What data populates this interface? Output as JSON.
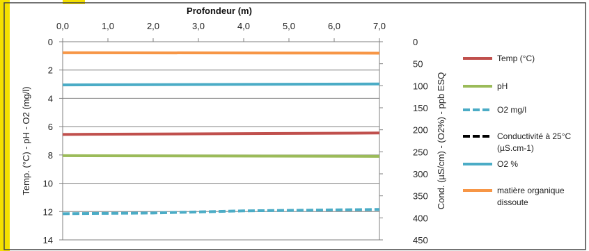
{
  "chart_data": {
    "type": "line",
    "title": "Profondeur (m)",
    "xlabel": "Profondeur (m)",
    "ylabel": "Temp. (°C) - pH - O2 (mg/l)",
    "y2label": "Cond. (µS/cm) - (O2%) - ppb ESQ",
    "x_ticks": [
      "0,0",
      "1,0",
      "2,0",
      "3,0",
      "4,0",
      "5,0",
      "6,0",
      "7,0"
    ],
    "y_ticks": [
      "0",
      "2",
      "4",
      "6",
      "8",
      "10",
      "12",
      "14"
    ],
    "y2_ticks": [
      "0",
      "50",
      "100",
      "150",
      "200",
      "250",
      "300",
      "350",
      "400",
      "450"
    ],
    "xlim": [
      0,
      7
    ],
    "ylim": [
      0,
      14
    ],
    "y2lim": [
      0,
      450
    ],
    "y_inverted": true,
    "x_axis_position": "top",
    "grid": "horizontal",
    "legend_position": "right",
    "series": [
      {
        "name": "Temp (°C)",
        "axis": "left",
        "color": "#c0504d",
        "dash": "solid",
        "x": [
          0,
          7
        ],
        "y": [
          6.55,
          6.45
        ]
      },
      {
        "name": "pH",
        "axis": "left",
        "color": "#9bbb59",
        "dash": "solid",
        "x": [
          0,
          7
        ],
        "y": [
          8.05,
          8.1
        ]
      },
      {
        "name": "O2  mg/l",
        "axis": "left",
        "color": "#4bacc6",
        "dash": "dashed",
        "x": [
          0,
          2,
          4,
          7
        ],
        "y": [
          12.15,
          12.1,
          11.95,
          11.85
        ]
      },
      {
        "name": "Conductivité à 25°C (µS.cm-1)",
        "axis": "right",
        "color": "#000000",
        "dash": "dashed",
        "x": [],
        "y": []
      },
      {
        "name": "O2 %",
        "axis": "right",
        "color": "#4bacc6",
        "dash": "solid",
        "x": [
          0,
          7
        ],
        "y": [
          98,
          96
        ]
      },
      {
        "name": "matière organique dissoute",
        "axis": "right",
        "color": "#f79646",
        "dash": "solid",
        "x": [
          0,
          7
        ],
        "y": [
          25,
          26
        ]
      }
    ]
  }
}
